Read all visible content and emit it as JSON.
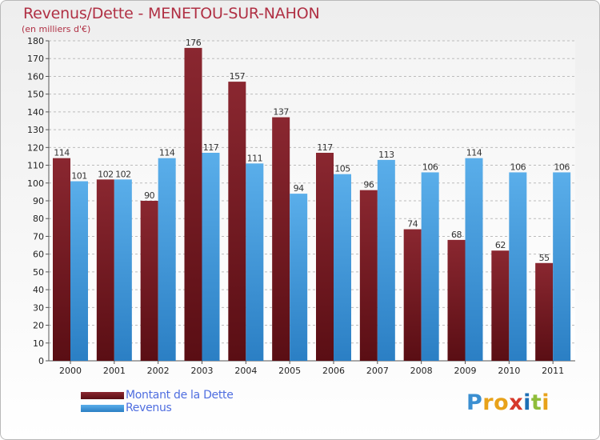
{
  "title": "Revenus/Dette - MENETOU-SUR-NAHON",
  "subtitle": "(en milliers d'€)",
  "logo": {
    "text": "Proxiti",
    "letter_colors": [
      "#3b8fd1",
      "#e8a21a",
      "#e8a21a",
      "#d6392b",
      "#1e6fb5",
      "#8fbd3a",
      "#e8a21a"
    ]
  },
  "colors": {
    "dette": "#7b1b23",
    "revenus": "#3f95dc",
    "axis_text": "#222222",
    "value_text": "#333333",
    "grid": "#bcbcbc"
  },
  "chart_data": {
    "type": "bar",
    "title": "Revenus/Dette - MENETOU-SUR-NAHON",
    "ylabel": "(en milliers d'€)",
    "xlabel": "",
    "categories": [
      "2000",
      "2001",
      "2002",
      "2003",
      "2004",
      "2005",
      "2006",
      "2007",
      "2008",
      "2009",
      "2010",
      "2011"
    ],
    "series": [
      {
        "name": "Montant de la Dette",
        "values": [
          114,
          102,
          90,
          176,
          157,
          137,
          117,
          96,
          74,
          68,
          62,
          55
        ]
      },
      {
        "name": "Revenus",
        "values": [
          101,
          102,
          114,
          117,
          111,
          94,
          105,
          113,
          106,
          114,
          106,
          106
        ]
      }
    ],
    "ylim": [
      0,
      180
    ],
    "yticks": [
      0,
      10,
      20,
      30,
      40,
      50,
      60,
      70,
      80,
      90,
      100,
      110,
      120,
      130,
      140,
      150,
      160,
      170,
      180
    ],
    "grid": true,
    "legend": "bottom-left"
  }
}
